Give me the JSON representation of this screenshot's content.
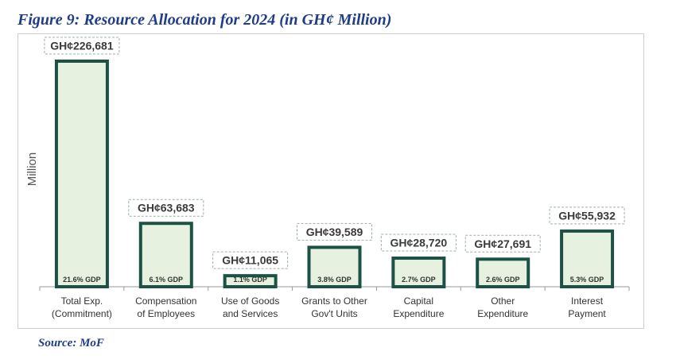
{
  "title": "Figure 9: Resource Allocation for 2024 (in GH¢ Million)",
  "source": "Source: MoF",
  "colors": {
    "bar_fill": "#e6f2df",
    "bar_stroke": "#1c5245",
    "title": "#1f3c88",
    "label_box": "#9ab0ac"
  },
  "chart_data": {
    "type": "bar",
    "ylabel": "Million",
    "ylim": [
      0,
      226681
    ],
    "grid": false,
    "categories": [
      [
        "Total Exp.",
        "(Commitment)"
      ],
      [
        "Compensation",
        "of Employees"
      ],
      [
        "Use of Goods",
        "and Services"
      ],
      [
        "Grants to Other",
        "Gov't Units"
      ],
      [
        "Capital",
        "Expenditure"
      ],
      [
        "Other",
        "Expenditure"
      ],
      [
        "Interest",
        "Payment"
      ]
    ],
    "values": [
      226681,
      63683,
      11065,
      39589,
      28720,
      27691,
      55932
    ],
    "value_labels": [
      "GH¢226,681",
      "GH¢63,683",
      "GH¢11,065",
      "GH¢39,589",
      "GH¢28,720",
      "GH¢27,691",
      "GH¢55,932"
    ],
    "gdp_labels": [
      "21.6% GDP",
      "6.1% GDP",
      "1.1% GDP",
      "3.8% GDP",
      "2.7% GDP",
      "2.6% GDP",
      "5.3% GDP"
    ]
  }
}
